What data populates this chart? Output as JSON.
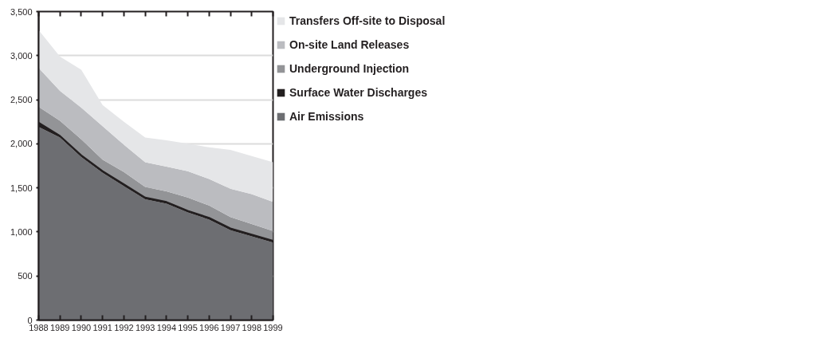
{
  "chart_data": {
    "type": "area",
    "stacked": true,
    "x": [
      1988,
      1989,
      1990,
      1991,
      1992,
      1993,
      1994,
      1995,
      1996,
      1997,
      1998,
      1999
    ],
    "series": [
      {
        "name": "Air Emissions",
        "color": "#6d6e72",
        "values": [
          2190,
          2070,
          1850,
          1670,
          1520,
          1370,
          1320,
          1220,
          1140,
          1020,
          950,
          880
        ]
      },
      {
        "name": "Surface Water Discharges",
        "color": "#231f20",
        "values": [
          50,
          20,
          20,
          20,
          20,
          20,
          20,
          20,
          20,
          20,
          20,
          20
        ]
      },
      {
        "name": "Underground Injection",
        "color": "#939497",
        "values": [
          180,
          170,
          180,
          130,
          140,
          120,
          120,
          150,
          140,
          130,
          120,
          110
        ]
      },
      {
        "name": "On-site Land Releases",
        "color": "#bbbcc0",
        "values": [
          440,
          340,
          360,
          380,
          310,
          280,
          280,
          300,
          300,
          320,
          340,
          330
        ]
      },
      {
        "name": "Transfers Off-site to Disposal",
        "color": "#e5e6e8",
        "values": [
          430,
          390,
          430,
          240,
          260,
          280,
          300,
          310,
          360,
          440,
          430,
          450
        ]
      }
    ],
    "xlim": [
      1988,
      1999
    ],
    "xticks": [
      1988,
      1989,
      1990,
      1991,
      1992,
      1993,
      1994,
      1995,
      1996,
      1997,
      1998,
      1999
    ],
    "ylim": [
      0,
      3500
    ],
    "yticks": [
      0,
      500,
      {
        "value": 1000,
        "label": "1,000"
      },
      {
        "value": 1500,
        "label": "1,500"
      },
      {
        "value": 2000,
        "label": "2,000"
      },
      {
        "value": 2500,
        "label": "2,500"
      },
      {
        "value": 3000,
        "label": "3,000"
      },
      {
        "value": 3500,
        "label": "3,500"
      }
    ],
    "grid": "y",
    "legend": "right"
  }
}
